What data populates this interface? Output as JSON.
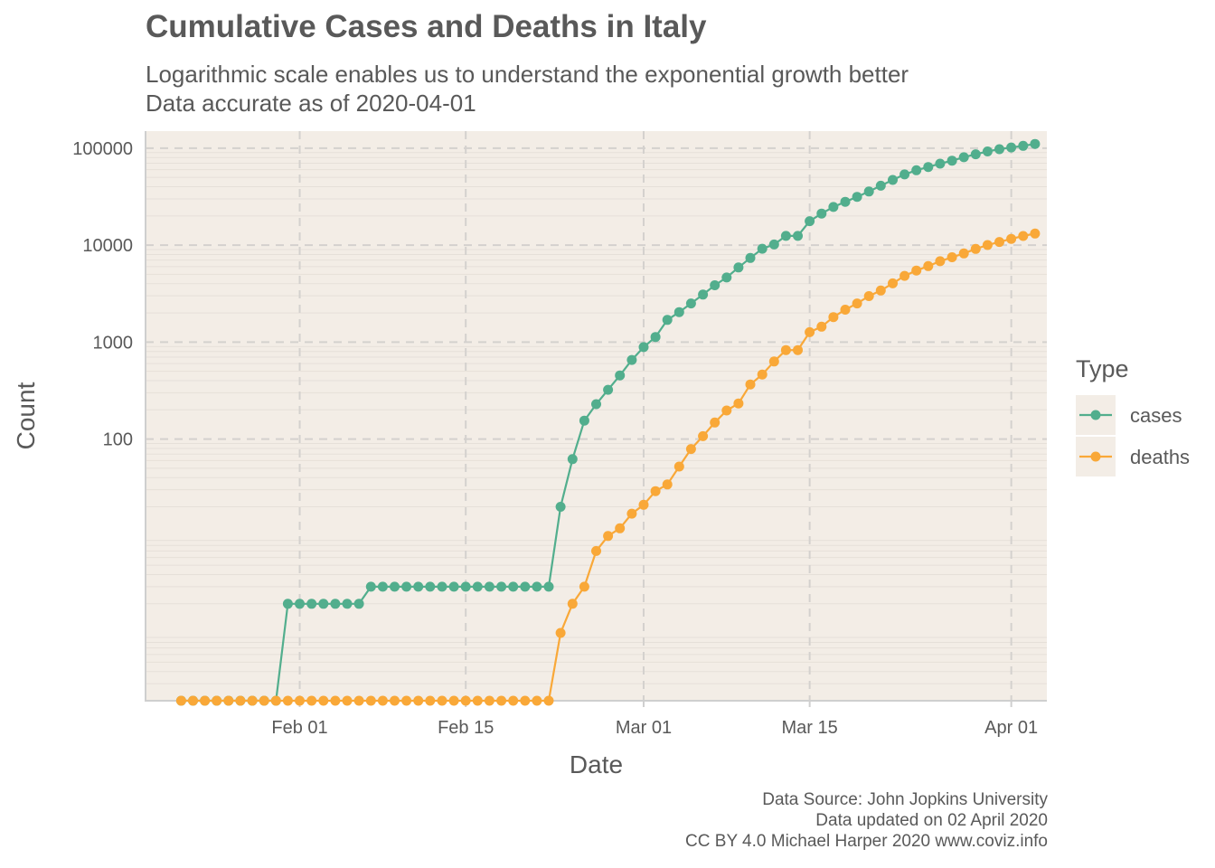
{
  "title": "Cumulative Cases and Deaths in Italy",
  "subtitle_lines": [
    "Logarithmic scale enables us to understand the exponential growth better",
    "Data accurate as of 2020-04-01"
  ],
  "caption_lines": [
    "Data Source: John Jopkins University",
    "Data updated on 02 April 2020",
    "CC BY 4.0 Michael Harper 2020 www.coviz.info"
  ],
  "colors": {
    "panel": "#f3ede6",
    "grid": "#d4d1ce",
    "cases": "#52ae8d",
    "deaths": "#f9a838",
    "text": "#595959"
  },
  "chart_data": {
    "type": "line",
    "xlabel": "Date",
    "ylabel": "Count",
    "x_scale": "date",
    "y_scale": "log10",
    "x_range": [
      "2020-01-19",
      "2020-04-04"
    ],
    "ylim": [
      0.2,
      150000
    ],
    "grid": true,
    "x_ticks": [
      {
        "date": "2020-02-01",
        "label": "Feb 01"
      },
      {
        "date": "2020-02-15",
        "label": "Feb 15"
      },
      {
        "date": "2020-03-01",
        "label": "Mar 01"
      },
      {
        "date": "2020-03-15",
        "label": "Mar 15"
      },
      {
        "date": "2020-04-01",
        "label": "Apr 01"
      }
    ],
    "y_ticks": [
      {
        "value": 100,
        "label": "100"
      },
      {
        "value": 1000,
        "label": "1000"
      },
      {
        "value": 10000,
        "label": "10000"
      },
      {
        "value": 100000,
        "label": "100000"
      }
    ],
    "legend": {
      "title": "Type",
      "position": "right"
    },
    "start_date": "2020-01-22",
    "series": [
      {
        "name": "cases",
        "color": "#52ae8d",
        "values": [
          0,
          0,
          0,
          0,
          0,
          0,
          0,
          0,
          0,
          2,
          2,
          2,
          2,
          2,
          2,
          2,
          3,
          3,
          3,
          3,
          3,
          3,
          3,
          3,
          3,
          3,
          3,
          3,
          3,
          3,
          3,
          3,
          20,
          62,
          155,
          229,
          322,
          453,
          655,
          888,
          1128,
          1694,
          2036,
          2502,
          3089,
          3858,
          4636,
          5883,
          7375,
          9172,
          10149,
          12462,
          12462,
          17660,
          21157,
          24747,
          27980,
          31506,
          35713,
          41035,
          47021,
          53578,
          59138,
          63927,
          69176,
          74386,
          80589,
          86498,
          92472,
          97689,
          101739,
          105792,
          110574
        ]
      },
      {
        "name": "deaths",
        "color": "#f9a838",
        "values": [
          0,
          0,
          0,
          0,
          0,
          0,
          0,
          0,
          0,
          0,
          0,
          0,
          0,
          0,
          0,
          0,
          0,
          0,
          0,
          0,
          0,
          0,
          0,
          0,
          0,
          0,
          0,
          0,
          0,
          0,
          0,
          0,
          1,
          2,
          3,
          7,
          10,
          12,
          17,
          21,
          29,
          34,
          52,
          79,
          107,
          148,
          197,
          233,
          366,
          463,
          631,
          827,
          827,
          1266,
          1441,
          1809,
          2158,
          2503,
          2978,
          3405,
          4032,
          4825,
          5476,
          6077,
          6820,
          7503,
          8215,
          9134,
          10023,
          10779,
          11591,
          12428,
          13155
        ]
      }
    ]
  }
}
